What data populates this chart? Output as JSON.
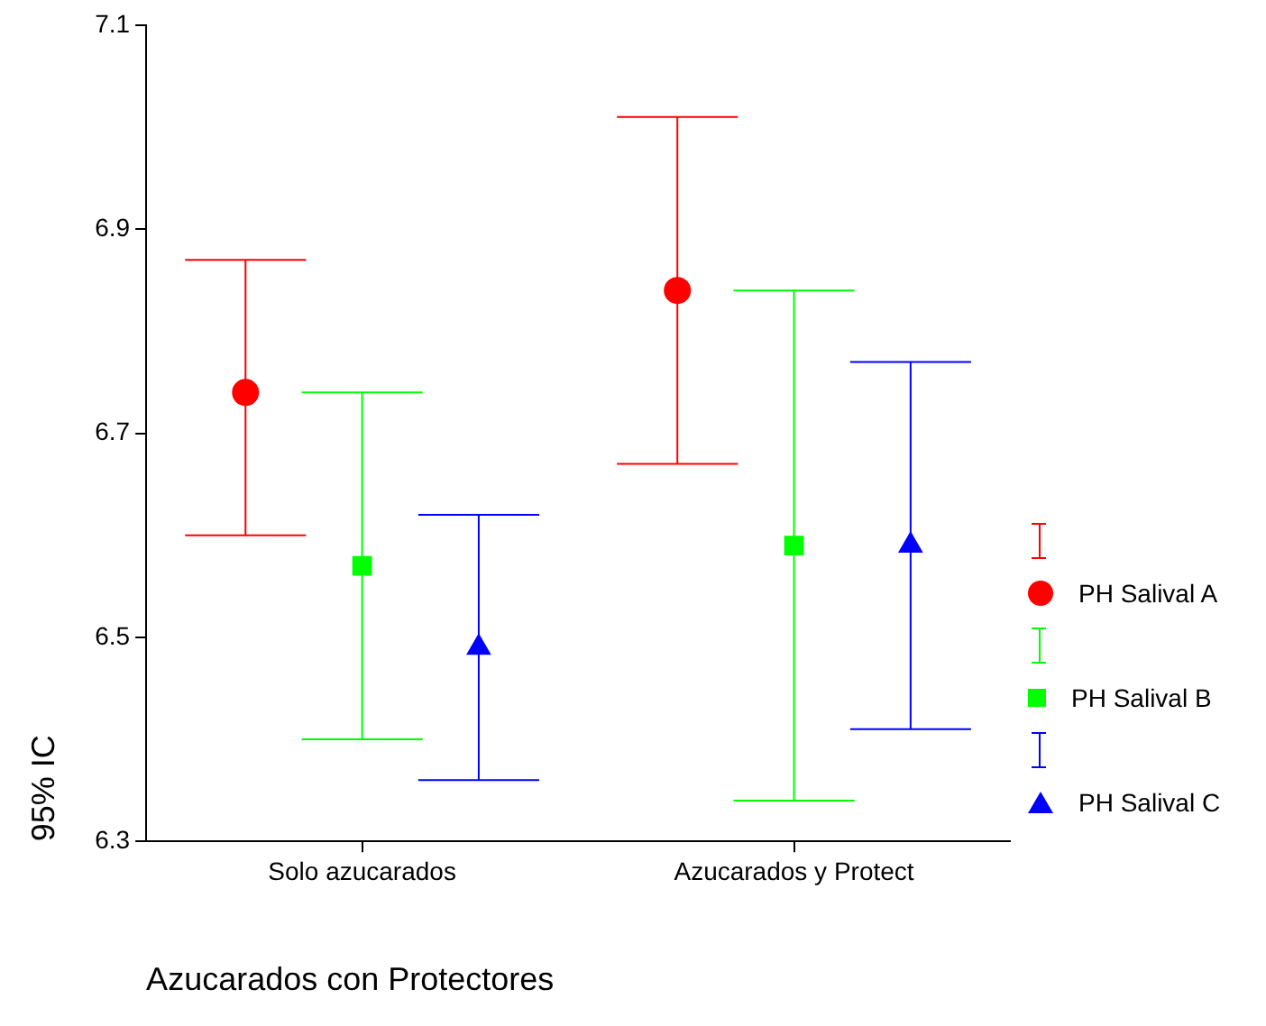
{
  "chart_data": {
    "type": "scatter",
    "categories": [
      "Solo azucarados",
      "Azucarados y Protect"
    ],
    "xlabel": "Azucarados con Protectores",
    "ylabel": "95% IC",
    "ylim": [
      6.3,
      7.1
    ],
    "yticks": [
      6.3,
      6.5,
      6.7,
      6.9,
      7.1
    ],
    "grid": false,
    "legend": "right",
    "series": [
      {
        "name": "PH Salival A",
        "color": "#ff0000",
        "marker": "circle",
        "values": [
          6.74,
          6.84
        ],
        "errors": [
          [
            6.6,
            6.87
          ],
          [
            6.67,
            7.01
          ]
        ]
      },
      {
        "name": "PH Salival B",
        "color": "#00ff00",
        "marker": "square",
        "values": [
          6.57,
          6.59
        ],
        "errors": [
          [
            6.4,
            6.74
          ],
          [
            6.34,
            6.84
          ]
        ]
      },
      {
        "name": "PH Salival C",
        "color": "#0000ff",
        "marker": "triangle",
        "values": [
          6.49,
          6.59
        ],
        "errors": [
          [
            6.36,
            6.62
          ],
          [
            6.41,
            6.77
          ]
        ]
      }
    ]
  }
}
